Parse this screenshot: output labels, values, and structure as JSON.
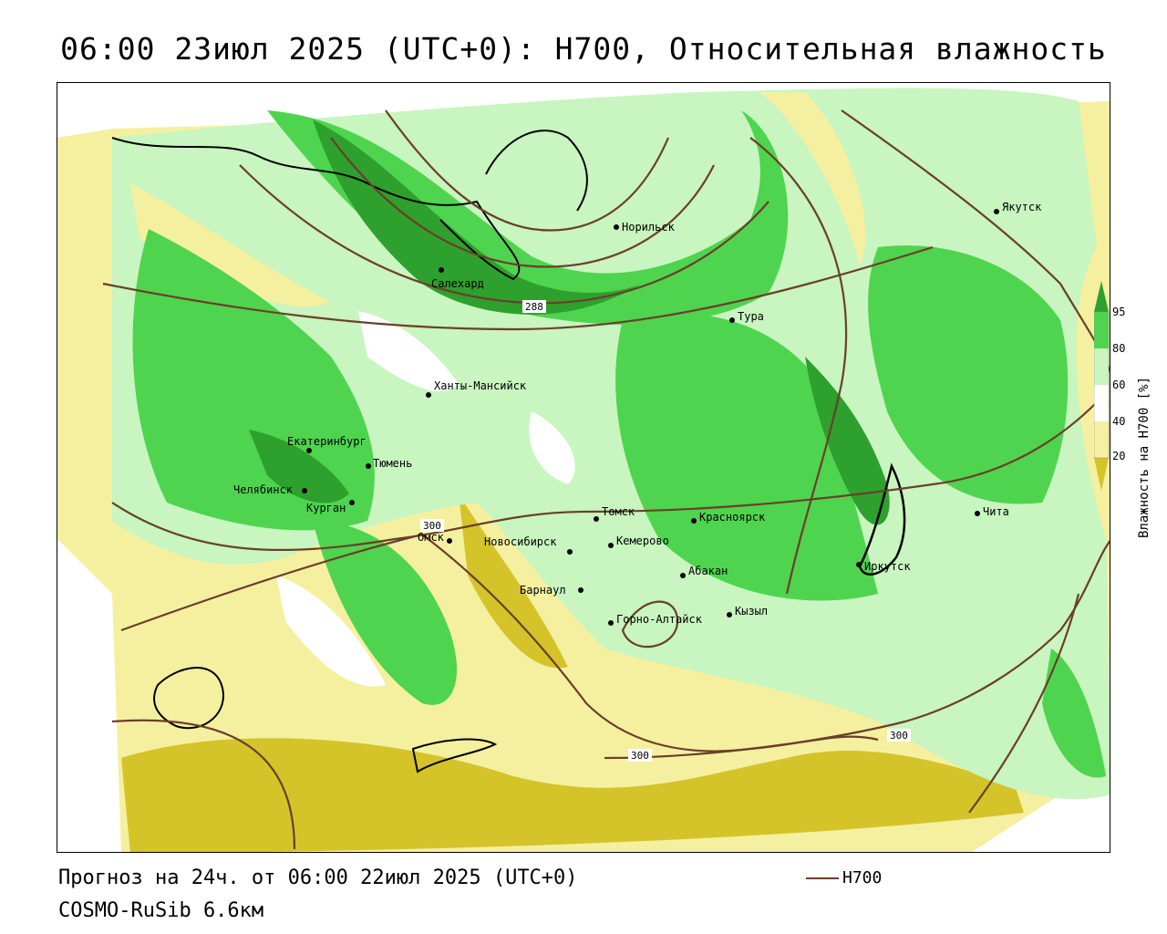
{
  "title": "06:00 23июл 2025 (UTC+0): H700, Относительная влажность",
  "footer": {
    "forecast": "Прогноз на 24ч. от 06:00 22июл 2025 (UTC+0)",
    "model": "COSMO-RuSib 6.6км"
  },
  "line_legend": {
    "label": "H700",
    "color": "#6b3f2a"
  },
  "colorbar": {
    "title": "Влажность на H700 [%]",
    "ticks": [
      "95",
      "80",
      "60",
      "40",
      "20"
    ],
    "colors": {
      "very_dry": "#d4c42a",
      "dry": "#f5f0a0",
      "neutral": "#ffffff",
      "moist": "#c8f5c0",
      "wet": "#4fd44f",
      "very_wet": "#2ea02e"
    }
  },
  "cities": [
    {
      "name": "Якутск"
    },
    {
      "name": "Норильск"
    },
    {
      "name": "Салехард"
    },
    {
      "name": "Тура"
    },
    {
      "name": "Ханты-Мансийск"
    },
    {
      "name": "Екатеринбург"
    },
    {
      "name": "Тюмень"
    },
    {
      "name": "Челябинск"
    },
    {
      "name": "Курган"
    },
    {
      "name": "Омск"
    },
    {
      "name": "Новосибирск"
    },
    {
      "name": "Томск"
    },
    {
      "name": "Кемерово"
    },
    {
      "name": "Красноярск"
    },
    {
      "name": "Абакан"
    },
    {
      "name": "Барнаул"
    },
    {
      "name": "Горно-Алтайск"
    },
    {
      "name": "Кызыл"
    },
    {
      "name": "Иркутск"
    },
    {
      "name": "Чита"
    }
  ],
  "isoline_labels": [
    "288",
    "300",
    "300",
    "300"
  ]
}
